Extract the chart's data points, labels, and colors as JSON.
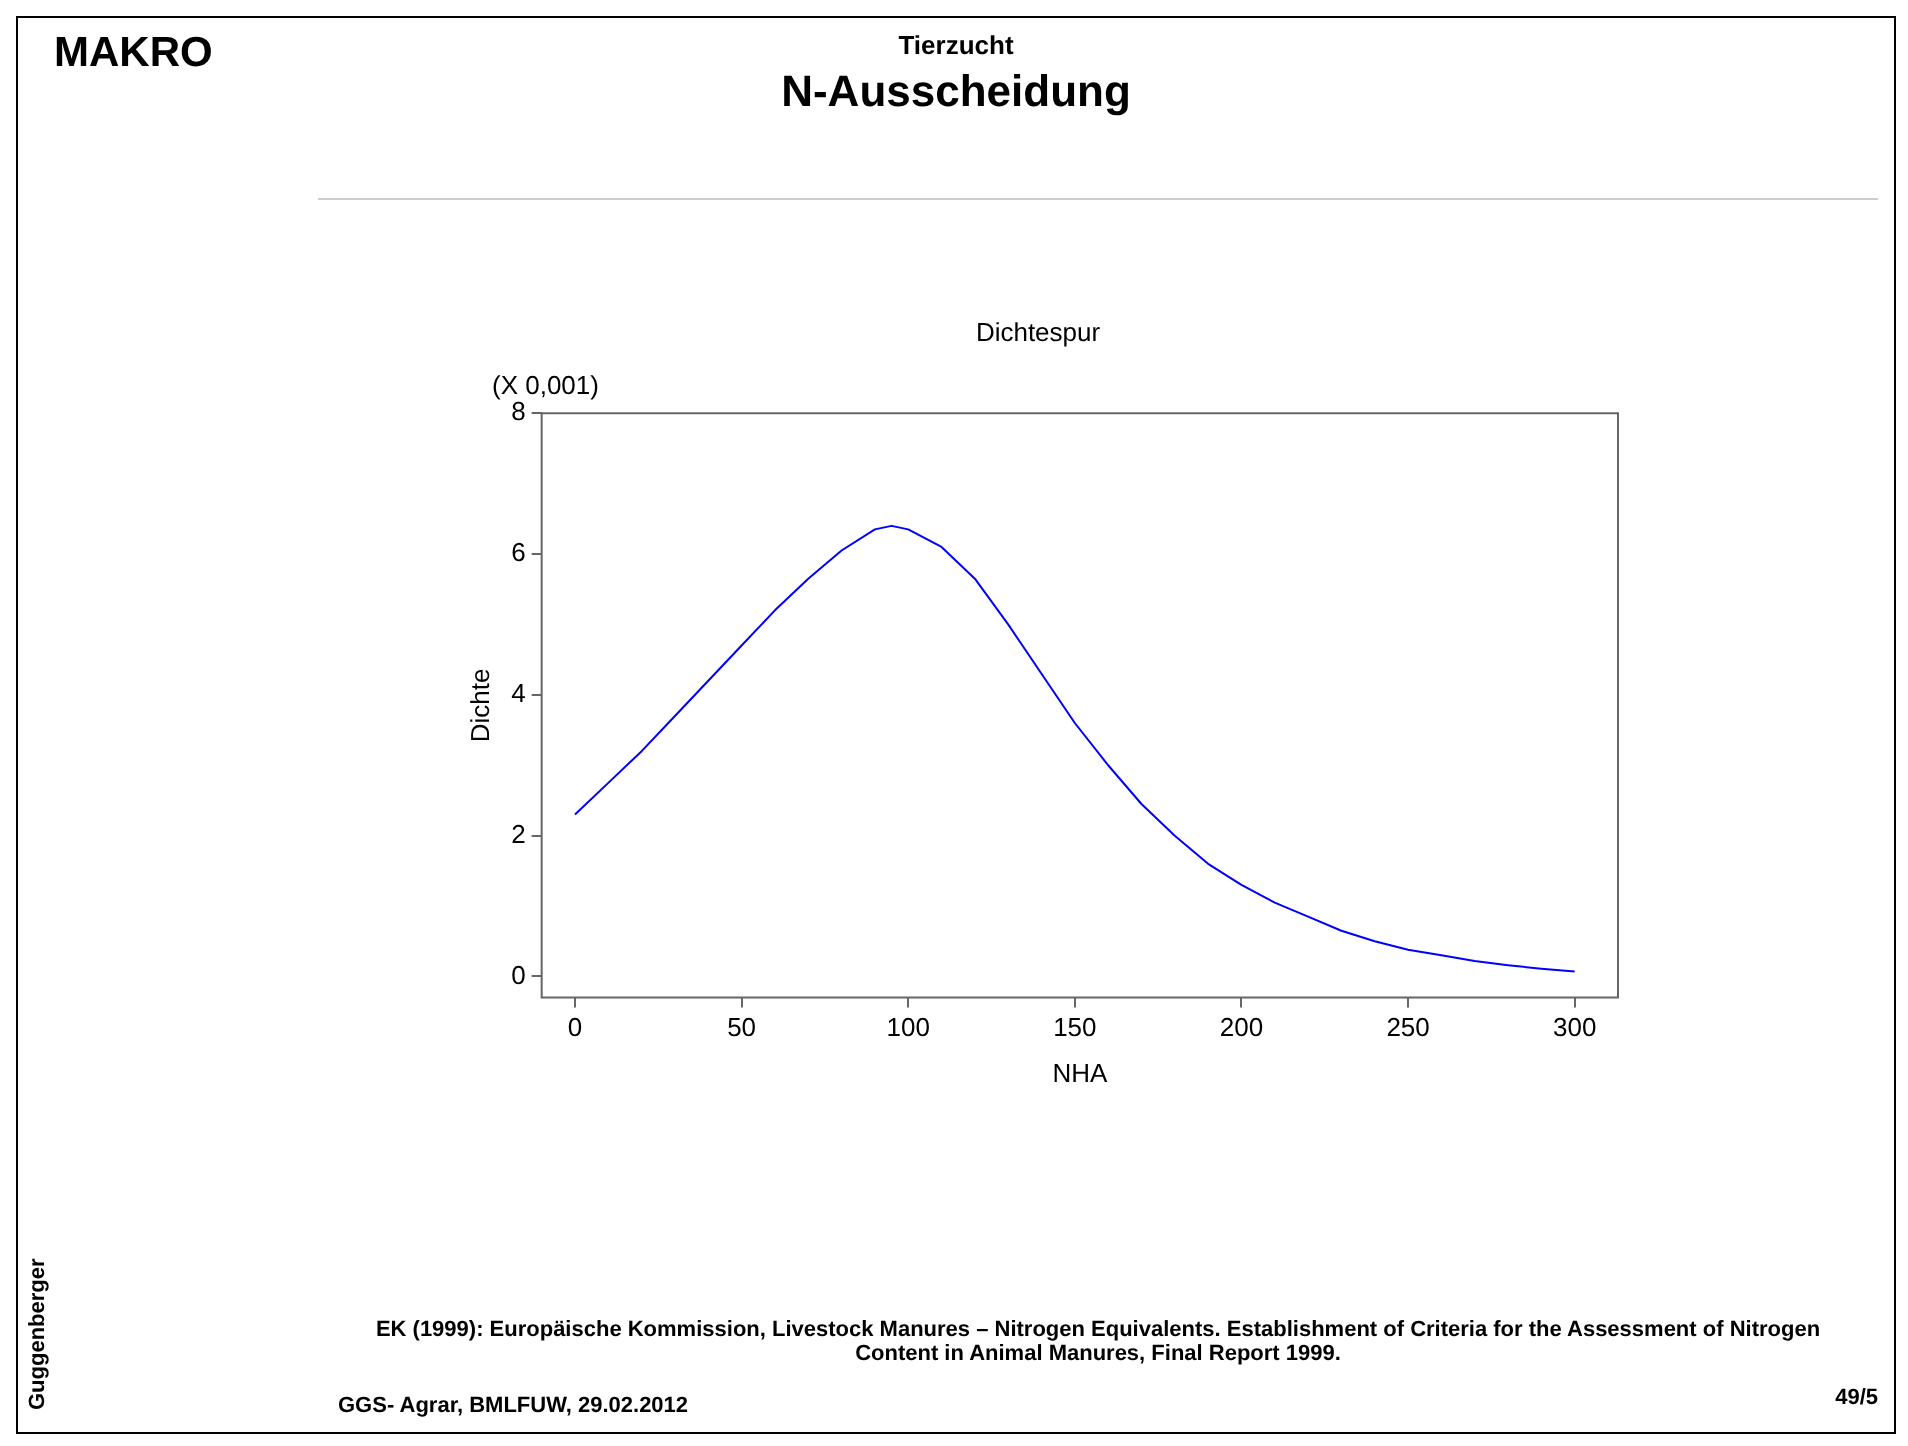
{
  "chart_data": {
    "type": "line",
    "title": "Dichtespur",
    "xlabel": "NHA",
    "ylabel": "Dichte",
    "annotations": [
      "MAKRO",
      "Tierzucht",
      "N-Ausscheidung",
      "(X 0,001)",
      "EK (1999): Europäische Kommission, Livestock Manures – Nitrogen Equivalents. Establishment of Criteria for the Assessment of Nitrogen Content in Animal Manures, Final Report 1999.",
      "GGS- Agrar, BMLFUW, 29.02.2012",
      "49/5",
      "Guggenberger"
    ],
    "x": [
      0,
      10,
      20,
      30,
      40,
      50,
      60,
      70,
      80,
      90,
      95,
      100,
      110,
      120,
      130,
      140,
      150,
      160,
      170,
      180,
      190,
      200,
      210,
      220,
      230,
      240,
      250,
      260,
      270,
      280,
      290,
      300
    ],
    "series": [
      {
        "color": "#0000ff",
        "values": [
          2.3,
          2.75,
          3.2,
          3.7,
          4.2,
          4.7,
          5.2,
          5.65,
          6.05,
          6.35,
          6.4,
          6.35,
          6.1,
          5.65,
          5.0,
          4.3,
          3.6,
          3.0,
          2.45,
          2.0,
          1.6,
          1.3,
          1.05,
          0.85,
          0.65,
          0.5,
          0.38,
          0.3,
          0.22,
          0.16,
          0.11,
          0.07
        ]
      }
    ],
    "xlim": [
      -10,
      313
    ],
    "xticks": [
      0,
      50,
      100,
      150,
      200,
      250,
      300
    ],
    "ylim": [
      -0.3,
      8
    ],
    "yticks": [
      0,
      2,
      4,
      6,
      8
    ],
    "marker": "none",
    "line_style": "solid"
  }
}
